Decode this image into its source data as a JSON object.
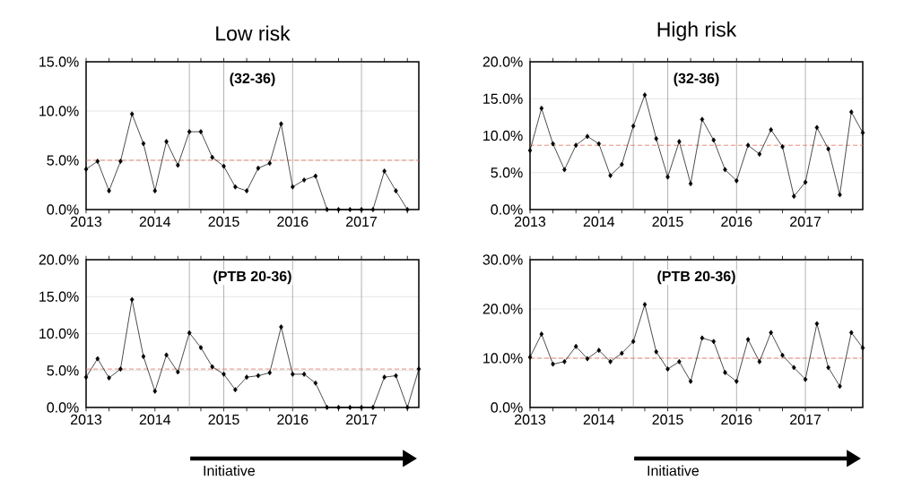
{
  "chart_data": [
    {
      "type": "line",
      "title": "Low risk",
      "annotations": [
        "(32-36)"
      ],
      "x": [
        2013,
        2013.167,
        2013.333,
        2013.5,
        2013.667,
        2013.833,
        2014,
        2014.167,
        2014.333,
        2014.5,
        2014.667,
        2014.833,
        2015,
        2015.167,
        2015.333,
        2015.5,
        2015.667,
        2015.833,
        2016,
        2016.167,
        2016.333,
        2016.5,
        2016.667,
        2016.833,
        2017,
        2017.167,
        2017.333,
        2017.5,
        2017.667
      ],
      "values": [
        4.1,
        4.9,
        1.9,
        4.9,
        9.7,
        6.7,
        1.9,
        6.9,
        4.5,
        7.9,
        7.9,
        5.3,
        4.4,
        2.3,
        1.9,
        4.2,
        4.7,
        8.7,
        2.3,
        3.0,
        3.4,
        0,
        0,
        0,
        0,
        0,
        3.9,
        1.9,
        0
      ],
      "color": "#000000",
      "marker": "diamond",
      "line_style": "solid",
      "grid": "y",
      "xlim": [
        2013,
        2017.833
      ],
      "ylim": [
        0,
        15
      ],
      "xticks": [
        2013,
        {
          "value": 2013.333,
          "label": null
        },
        {
          "value": 2013.667,
          "label": null
        },
        2014,
        {
          "value": 2014.333,
          "label": null
        },
        {
          "value": 2014.667,
          "label": null
        },
        2015,
        {
          "value": 2015.333,
          "label": null
        },
        {
          "value": 2015.667,
          "label": null
        },
        2016,
        {
          "value": 2016.333,
          "label": null
        },
        {
          "value": 2016.667,
          "label": null
        },
        2017,
        {
          "value": 2017.333,
          "label": null
        },
        {
          "value": 2017.667,
          "label": null
        }
      ],
      "yticks": [
        {
          "value": 0,
          "label": "0.0%"
        },
        {
          "value": 5,
          "label": "5.0%"
        },
        {
          "value": 10,
          "label": "10.0%"
        },
        {
          "value": 15,
          "label": "15.0%"
        }
      ],
      "ref_lines": [
        {
          "axis": "x",
          "value": 2014.5,
          "color": "#808080"
        },
        {
          "axis": "x",
          "value": 2015,
          "color": "#808080"
        },
        {
          "axis": "x",
          "value": 2016,
          "color": "#808080"
        },
        {
          "axis": "x",
          "value": 2017,
          "color": "#808080"
        },
        {
          "axis": "y",
          "value": 5.0,
          "color": "#e8806a",
          "line_style": "dashed"
        }
      ]
    },
    {
      "type": "line",
      "title": "High risk",
      "annotations": [
        "(32-36)"
      ],
      "x": [
        2013,
        2013.167,
        2013.333,
        2013.5,
        2013.667,
        2013.833,
        2014,
        2014.167,
        2014.333,
        2014.5,
        2014.667,
        2014.833,
        2015,
        2015.167,
        2015.333,
        2015.5,
        2015.667,
        2015.833,
        2016,
        2016.167,
        2016.333,
        2016.5,
        2016.667,
        2016.833,
        2017,
        2017.167,
        2017.333,
        2017.5,
        2017.667,
        2017.833
      ],
      "values": [
        8.0,
        13.7,
        8.9,
        5.4,
        8.7,
        9.9,
        8.9,
        4.6,
        6.1,
        11.3,
        15.5,
        9.6,
        4.4,
        9.2,
        3.5,
        12.2,
        9.4,
        5.4,
        3.9,
        8.7,
        7.5,
        10.8,
        8.5,
        1.8,
        3.7,
        11.1,
        8.2,
        2.0,
        13.2,
        10.4
      ],
      "color": "#000000",
      "marker": "diamond",
      "line_style": "solid",
      "grid": "y",
      "xlim": [
        2013,
        2017.833
      ],
      "ylim": [
        0,
        20
      ],
      "xticks": [
        2013,
        {
          "value": 2013.333,
          "label": null
        },
        {
          "value": 2013.667,
          "label": null
        },
        2014,
        {
          "value": 2014.333,
          "label": null
        },
        {
          "value": 2014.667,
          "label": null
        },
        2015,
        {
          "value": 2015.333,
          "label": null
        },
        {
          "value": 2015.667,
          "label": null
        },
        2016,
        {
          "value": 2016.333,
          "label": null
        },
        {
          "value": 2016.667,
          "label": null
        },
        2017,
        {
          "value": 2017.333,
          "label": null
        },
        {
          "value": 2017.667,
          "label": null
        }
      ],
      "yticks": [
        {
          "value": 0,
          "label": "0.0%"
        },
        {
          "value": 5,
          "label": "5.0%"
        },
        {
          "value": 10,
          "label": "10.0%"
        },
        {
          "value": 15,
          "label": "15.0%"
        },
        {
          "value": 20,
          "label": "20.0%"
        }
      ],
      "ref_lines": [
        {
          "axis": "x",
          "value": 2014.5,
          "color": "#808080"
        },
        {
          "axis": "x",
          "value": 2015,
          "color": "#808080"
        },
        {
          "axis": "x",
          "value": 2016,
          "color": "#808080"
        },
        {
          "axis": "x",
          "value": 2017,
          "color": "#808080"
        },
        {
          "axis": "y",
          "value": 8.7,
          "color": "#e8806a",
          "line_style": "dashed"
        }
      ]
    },
    {
      "type": "line",
      "annotations": [
        "(PTB 20-36)",
        "Initiative"
      ],
      "x": [
        2013,
        2013.167,
        2013.333,
        2013.5,
        2013.667,
        2013.833,
        2014,
        2014.167,
        2014.333,
        2014.5,
        2014.667,
        2014.833,
        2015,
        2015.167,
        2015.333,
        2015.5,
        2015.667,
        2015.833,
        2016,
        2016.167,
        2016.333,
        2016.5,
        2016.667,
        2016.833,
        2017,
        2017.167,
        2017.333,
        2017.5,
        2017.667,
        2017.833
      ],
      "values": [
        4.1,
        6.6,
        4.0,
        5.2,
        14.6,
        6.9,
        2.2,
        7.1,
        4.8,
        10.1,
        8.1,
        5.5,
        4.5,
        2.4,
        4.1,
        4.3,
        4.7,
        10.9,
        4.5,
        4.5,
        3.3,
        0,
        0,
        0,
        0,
        0,
        4.1,
        4.3,
        0,
        5.2
      ],
      "color": "#000000",
      "marker": "diamond",
      "line_style": "solid",
      "grid": "y",
      "xlim": [
        2013,
        2017.833
      ],
      "ylim": [
        0,
        20
      ],
      "xticks": [
        2013,
        {
          "value": 2013.333,
          "label": null
        },
        {
          "value": 2013.667,
          "label": null
        },
        2014,
        {
          "value": 2014.333,
          "label": null
        },
        {
          "value": 2014.667,
          "label": null
        },
        2015,
        {
          "value": 2015.333,
          "label": null
        },
        {
          "value": 2015.667,
          "label": null
        },
        2016,
        {
          "value": 2016.333,
          "label": null
        },
        {
          "value": 2016.667,
          "label": null
        },
        2017,
        {
          "value": 2017.333,
          "label": null
        },
        {
          "value": 2017.667,
          "label": null
        }
      ],
      "yticks": [
        {
          "value": 0,
          "label": "0.0%"
        },
        {
          "value": 5,
          "label": "5.0%"
        },
        {
          "value": 10,
          "label": "10.0%"
        },
        {
          "value": 15,
          "label": "15.0%"
        },
        {
          "value": 20,
          "label": "20.0%"
        }
      ],
      "ref_lines": [
        {
          "axis": "x",
          "value": 2014.5,
          "color": "#808080"
        },
        {
          "axis": "x",
          "value": 2015,
          "color": "#808080"
        },
        {
          "axis": "x",
          "value": 2016,
          "color": "#808080"
        },
        {
          "axis": "x",
          "value": 2017,
          "color": "#808080"
        },
        {
          "axis": "y",
          "value": 5.2,
          "color": "#e8806a",
          "line_style": "dashed"
        }
      ]
    },
    {
      "type": "line",
      "annotations": [
        "(PTB 20-36)",
        "Initiative"
      ],
      "x": [
        2013,
        2013.167,
        2013.333,
        2013.5,
        2013.667,
        2013.833,
        2014,
        2014.167,
        2014.333,
        2014.5,
        2014.667,
        2014.833,
        2015,
        2015.167,
        2015.333,
        2015.5,
        2015.667,
        2015.833,
        2016,
        2016.167,
        2016.333,
        2016.5,
        2016.667,
        2016.833,
        2017,
        2017.167,
        2017.333,
        2017.5,
        2017.667,
        2017.833
      ],
      "values": [
        10.2,
        14.9,
        8.8,
        9.3,
        12.4,
        9.9,
        11.6,
        9.3,
        11.0,
        13.4,
        20.9,
        11.3,
        7.8,
        9.3,
        5.3,
        14.1,
        13.4,
        7.1,
        5.3,
        13.8,
        9.3,
        15.2,
        10.6,
        8.1,
        5.7,
        17.0,
        8.1,
        4.3,
        15.2,
        12.1
      ],
      "color": "#000000",
      "marker": "diamond",
      "line_style": "solid",
      "grid": "y",
      "xlim": [
        2013,
        2017.833
      ],
      "ylim": [
        0,
        30
      ],
      "xticks": [
        2013,
        {
          "value": 2013.333,
          "label": null
        },
        {
          "value": 2013.667,
          "label": null
        },
        2014,
        {
          "value": 2014.333,
          "label": null
        },
        {
          "value": 2014.667,
          "label": null
        },
        2015,
        {
          "value": 2015.333,
          "label": null
        },
        {
          "value": 2015.667,
          "label": null
        },
        2016,
        {
          "value": 2016.333,
          "label": null
        },
        {
          "value": 2016.667,
          "label": null
        },
        2017,
        {
          "value": 2017.333,
          "label": null
        },
        {
          "value": 2017.667,
          "label": null
        }
      ],
      "yticks": [
        {
          "value": 0,
          "label": "0.0%"
        },
        {
          "value": 10,
          "label": "10.0%"
        },
        {
          "value": 20,
          "label": "20.0%"
        },
        {
          "value": 30,
          "label": "30.0%"
        }
      ],
      "ref_lines": [
        {
          "axis": "x",
          "value": 2014.5,
          "color": "#808080"
        },
        {
          "axis": "x",
          "value": 2015,
          "color": "#808080"
        },
        {
          "axis": "x",
          "value": 2016,
          "color": "#808080"
        },
        {
          "axis": "x",
          "value": 2017,
          "color": "#808080"
        },
        {
          "axis": "y",
          "value": 10.0,
          "color": "#e8806a",
          "line_style": "dashed"
        }
      ]
    }
  ]
}
